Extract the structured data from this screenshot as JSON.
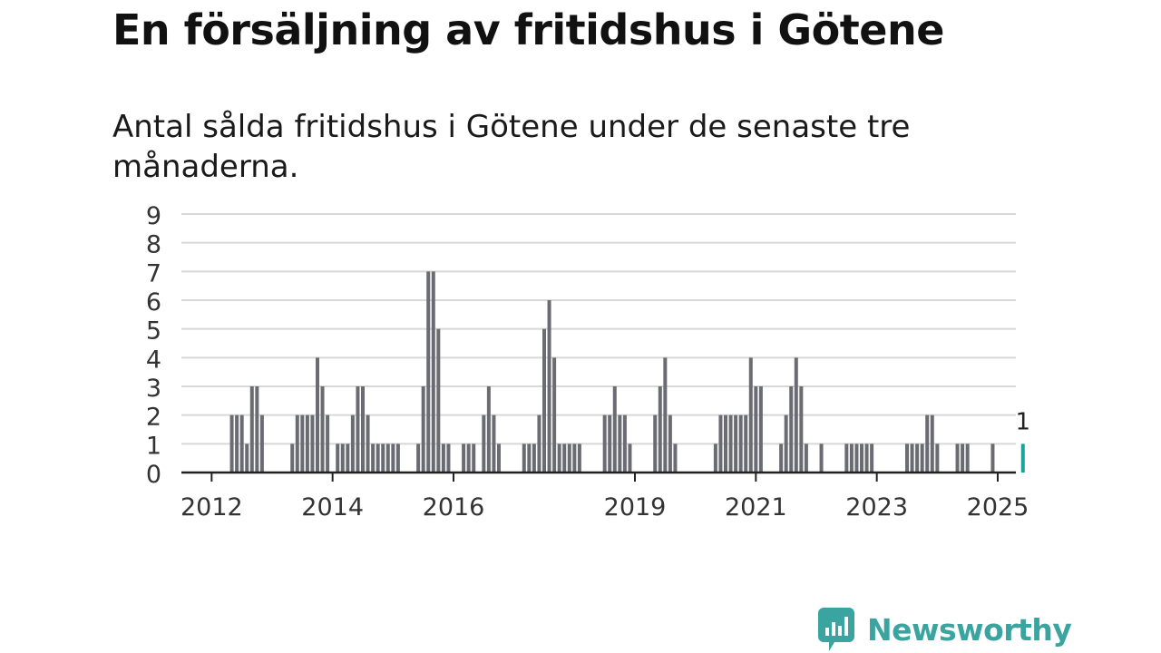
{
  "title": "En försäljning av fritidshus i Götene",
  "subtitle": "Antal sålda fritidshus i Götene under de senaste tre månaderna.",
  "brand": {
    "name": "Newsworthy",
    "color": "#3aa5a0"
  },
  "colors": {
    "bar": "#6b6b73",
    "highlight": "#1aa39a",
    "grid": "#d8d8d8",
    "axis": "#222222"
  },
  "chart_data": {
    "type": "bar",
    "ylim": [
      0,
      9
    ],
    "yticks": [
      0,
      1,
      2,
      3,
      4,
      5,
      6,
      7,
      8,
      9
    ],
    "xaxis": {
      "start_year": 2011.5,
      "end_year": 2025.3,
      "ticks": [
        "2012",
        "2014",
        "2016",
        "2019",
        "2021",
        "2023",
        "2025"
      ]
    },
    "grid": true,
    "series": [
      {
        "points": [
          {
            "x": "2012-05",
            "y": 2
          },
          {
            "x": "2012-06",
            "y": 2
          },
          {
            "x": "2012-07",
            "y": 2
          },
          {
            "x": "2012-08",
            "y": 1
          },
          {
            "x": "2012-09",
            "y": 3
          },
          {
            "x": "2012-10",
            "y": 3
          },
          {
            "x": "2012-11",
            "y": 2
          },
          {
            "x": "2013-05",
            "y": 1
          },
          {
            "x": "2013-06",
            "y": 2
          },
          {
            "x": "2013-07",
            "y": 2
          },
          {
            "x": "2013-08",
            "y": 2
          },
          {
            "x": "2013-09",
            "y": 2
          },
          {
            "x": "2013-10",
            "y": 4
          },
          {
            "x": "2013-11",
            "y": 3
          },
          {
            "x": "2013-12",
            "y": 2
          },
          {
            "x": "2014-02",
            "y": 1
          },
          {
            "x": "2014-03",
            "y": 1
          },
          {
            "x": "2014-04",
            "y": 1
          },
          {
            "x": "2014-05",
            "y": 2
          },
          {
            "x": "2014-06",
            "y": 3
          },
          {
            "x": "2014-07",
            "y": 3
          },
          {
            "x": "2014-08",
            "y": 2
          },
          {
            "x": "2014-09",
            "y": 1
          },
          {
            "x": "2014-10",
            "y": 1
          },
          {
            "x": "2014-11",
            "y": 1
          },
          {
            "x": "2014-12",
            "y": 1
          },
          {
            "x": "2015-01",
            "y": 1
          },
          {
            "x": "2015-02",
            "y": 1
          },
          {
            "x": "2015-06",
            "y": 1
          },
          {
            "x": "2015-07",
            "y": 3
          },
          {
            "x": "2015-08",
            "y": 7
          },
          {
            "x": "2015-09",
            "y": 7
          },
          {
            "x": "2015-10",
            "y": 5
          },
          {
            "x": "2015-11",
            "y": 1
          },
          {
            "x": "2015-12",
            "y": 1
          },
          {
            "x": "2016-03",
            "y": 1
          },
          {
            "x": "2016-04",
            "y": 1
          },
          {
            "x": "2016-05",
            "y": 1
          },
          {
            "x": "2016-07",
            "y": 2
          },
          {
            "x": "2016-08",
            "y": 3
          },
          {
            "x": "2016-09",
            "y": 2
          },
          {
            "x": "2016-10",
            "y": 1
          },
          {
            "x": "2017-03",
            "y": 1
          },
          {
            "x": "2017-04",
            "y": 1
          },
          {
            "x": "2017-05",
            "y": 1
          },
          {
            "x": "2017-06",
            "y": 2
          },
          {
            "x": "2017-07",
            "y": 5
          },
          {
            "x": "2017-08",
            "y": 6
          },
          {
            "x": "2017-09",
            "y": 4
          },
          {
            "x": "2017-10",
            "y": 1
          },
          {
            "x": "2017-11",
            "y": 1
          },
          {
            "x": "2017-12",
            "y": 1
          },
          {
            "x": "2018-01",
            "y": 1
          },
          {
            "x": "2018-02",
            "y": 1
          },
          {
            "x": "2018-07",
            "y": 2
          },
          {
            "x": "2018-08",
            "y": 2
          },
          {
            "x": "2018-09",
            "y": 3
          },
          {
            "x": "2018-10",
            "y": 2
          },
          {
            "x": "2018-11",
            "y": 2
          },
          {
            "x": "2018-12",
            "y": 1
          },
          {
            "x": "2019-05",
            "y": 2
          },
          {
            "x": "2019-06",
            "y": 3
          },
          {
            "x": "2019-07",
            "y": 4
          },
          {
            "x": "2019-08",
            "y": 2
          },
          {
            "x": "2019-09",
            "y": 1
          },
          {
            "x": "2020-05",
            "y": 1
          },
          {
            "x": "2020-06",
            "y": 2
          },
          {
            "x": "2020-07",
            "y": 2
          },
          {
            "x": "2020-08",
            "y": 2
          },
          {
            "x": "2020-09",
            "y": 2
          },
          {
            "x": "2020-10",
            "y": 2
          },
          {
            "x": "2020-11",
            "y": 2
          },
          {
            "x": "2020-12",
            "y": 4
          },
          {
            "x": "2021-01",
            "y": 3
          },
          {
            "x": "2021-02",
            "y": 3
          },
          {
            "x": "2021-06",
            "y": 1
          },
          {
            "x": "2021-07",
            "y": 2
          },
          {
            "x": "2021-08",
            "y": 3
          },
          {
            "x": "2021-09",
            "y": 4
          },
          {
            "x": "2021-10",
            "y": 3
          },
          {
            "x": "2021-11",
            "y": 1
          },
          {
            "x": "2022-02",
            "y": 1
          },
          {
            "x": "2022-07",
            "y": 1
          },
          {
            "x": "2022-08",
            "y": 1
          },
          {
            "x": "2022-09",
            "y": 1
          },
          {
            "x": "2022-10",
            "y": 1
          },
          {
            "x": "2022-11",
            "y": 1
          },
          {
            "x": "2022-12",
            "y": 1
          },
          {
            "x": "2023-07",
            "y": 1
          },
          {
            "x": "2023-08",
            "y": 1
          },
          {
            "x": "2023-09",
            "y": 1
          },
          {
            "x": "2023-10",
            "y": 1
          },
          {
            "x": "2023-11",
            "y": 2
          },
          {
            "x": "2023-12",
            "y": 2
          },
          {
            "x": "2024-01",
            "y": 1
          },
          {
            "x": "2024-05",
            "y": 1
          },
          {
            "x": "2024-06",
            "y": 1
          },
          {
            "x": "2024-07",
            "y": 1
          },
          {
            "x": "2024-12",
            "y": 1
          },
          {
            "x": "2025-06",
            "y": 1,
            "highlight": true,
            "label": "1"
          }
        ]
      }
    ]
  }
}
